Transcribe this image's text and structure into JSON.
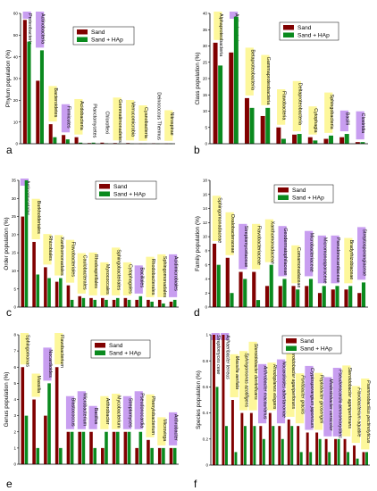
{
  "colors": {
    "sand": "#800000",
    "sand_hap": "#0a8a1e",
    "highlight_yellow": "#fdf79b",
    "highlight_purple": "#c89ef0"
  },
  "chart_data": [
    {
      "panel": "a",
      "type": "bar",
      "ylabel": "Phylum population (%)",
      "ylim": [
        0,
        60
      ],
      "yticks": [
        0,
        10,
        20,
        30,
        40,
        50,
        60
      ],
      "legend": [
        "Sand",
        "Sand + HAp"
      ],
      "legend_position": "top-center",
      "categories": [
        "Proteobacteria",
        "Actinobacteria",
        "Bacteroidetes",
        "Firmicutes",
        "Acidobacteria",
        "Planctomycetes",
        "Chloroflexi",
        "Gemmatimonadetes",
        "Verrucomicrobia",
        "Cyanobacteria",
        "Deinococcus Thermus",
        "Nitrospirae"
      ],
      "highlight": [
        "purple",
        "purple",
        "yellow",
        "purple",
        "yellow",
        "none",
        "none",
        "yellow",
        "yellow",
        "yellow",
        "none",
        "yellow"
      ],
      "series": [
        {
          "name": "Sand",
          "values": [
            57,
            29,
            9,
            4,
            3,
            0.3,
            0.5,
            0.3,
            0.3,
            0.1,
            0.2,
            0.1
          ]
        },
        {
          "name": "Sand + HAp",
          "values": [
            47,
            43,
            3,
            2,
            0.5,
            0.5,
            0.2,
            0.1,
            0.1,
            0.1,
            0.1,
            0.1
          ]
        }
      ]
    },
    {
      "panel": "b",
      "type": "bar",
      "ylabel": "Class population (%)",
      "ylim": [
        0,
        40
      ],
      "yticks": [
        0,
        5,
        10,
        15,
        20,
        25,
        30,
        35,
        40
      ],
      "legend": [
        "Sand",
        "Sand + HAp"
      ],
      "legend_position": "top-right",
      "categories": [
        "Alphaproteobacteria",
        "Actinobacteria",
        "Betaproteobacteria",
        "Gammaproteobacteria",
        "Flavobacteria",
        "Deltaproteobacteria",
        "Cytophagia",
        "Sphingobacteria",
        "Bacilli",
        "Clostridia"
      ],
      "highlight": [
        "yellow",
        "purple",
        "yellow",
        "yellow",
        "yellow",
        "yellow",
        "yellow",
        "yellow",
        "purple",
        "purple"
      ],
      "series": [
        {
          "name": "Sand",
          "values": [
            31,
            28,
            14,
            8.5,
            5,
            2.8,
            2,
            1.5,
            2,
            0.5
          ]
        },
        {
          "name": "Sand + HAp",
          "values": [
            24,
            39,
            11,
            11,
            1.5,
            3,
            1,
            2.5,
            3,
            0.5
          ]
        }
      ]
    },
    {
      "panel": "c",
      "type": "bar",
      "ylabel": "Order population (%)",
      "ylim": [
        0,
        35
      ],
      "yticks": [
        0,
        5,
        10,
        15,
        20,
        25,
        30,
        35
      ],
      "legend": [
        "Sand",
        "Sand + HAp"
      ],
      "legend_position": "top-right",
      "categories": [
        "Actinomycetales",
        "Burkholderiales",
        "Rhizobiales",
        "Xanthomonadales",
        "Flavobacteriales",
        "Caulobacterales",
        "Rhodospirillales",
        "Myxococcales",
        "Sphingobacteriales",
        "Cytophagales",
        "Bacillales",
        "Rhodobacterales",
        "Sphingomonadales",
        "Acidimicrobiales"
      ],
      "highlight": [
        "purple",
        "yellow",
        "yellow",
        "yellow",
        "yellow",
        "yellow",
        "yellow",
        "yellow",
        "yellow",
        "yellow",
        "purple",
        "yellow",
        "yellow",
        "purple"
      ],
      "series": [
        {
          "name": "Sand",
          "values": [
            25,
            18,
            11,
            7,
            6,
            3,
            2.5,
            2.5,
            2,
            2.5,
            2,
            2,
            2,
            1.5
          ]
        },
        {
          "name": "Sand + HAp",
          "values": [
            35,
            9,
            8,
            8,
            2,
            2.5,
            2,
            2,
            2.5,
            2,
            3,
            1.5,
            1,
            2
          ]
        }
      ]
    },
    {
      "panel": "d",
      "type": "bar",
      "ylabel": "Family population (%)",
      "ylim": [
        0,
        18
      ],
      "yticks": [
        0,
        2,
        4,
        6,
        8,
        10,
        12,
        14,
        16,
        18
      ],
      "legend": [
        "Sand",
        "Sand + HAp"
      ],
      "legend_position": "top-right",
      "categories": [
        "Sphingomonadaceae",
        "Oxalobacteraceae",
        "Streptomycetaceae",
        "Flavobacteriaceae",
        "Xanthomonadaceae",
        "Geodermatophilaceae",
        "Comamonadaceae",
        "Microbacteriaceae",
        "Micromonosporaceae",
        "Pseudonocardiaceae",
        "Bradyrhizobiaceae",
        "Streptosporangiaceae"
      ],
      "highlight": [
        "yellow",
        "yellow",
        "purple",
        "yellow",
        "yellow",
        "purple",
        "yellow",
        "purple",
        "purple",
        "purple",
        "yellow",
        "purple"
      ],
      "series": [
        {
          "name": "Sand",
          "values": [
            9,
            7,
            5,
            5,
            3,
            3,
            3,
            3,
            2,
            2.5,
            2.5,
            2
          ]
        },
        {
          "name": "Sand + HAp",
          "values": [
            6,
            2,
            4,
            1,
            6,
            4,
            2.5,
            4,
            3,
            3,
            3,
            3.5
          ]
        }
      ]
    },
    {
      "panel": "e",
      "type": "bar",
      "ylabel": "Genus population (%)",
      "ylim": [
        0,
        8
      ],
      "yticks": [
        0,
        1,
        2,
        3,
        4,
        5,
        6,
        7,
        8
      ],
      "legend": [
        "Sand",
        "Sand + HAp"
      ],
      "legend_position": "top-right",
      "categories": [
        "Sphingomonas",
        "Massilia",
        "Nocardioides",
        "Flavobacterium",
        "Blastococcus",
        "Microbacterium",
        "Bacillus",
        "Arthrobacter",
        "Mycobacterium",
        "Streptomyces",
        "Pseudonocardia",
        "Phenylobacterium",
        "Microvirga",
        "Arthrobacter"
      ],
      "highlight": [
        "yellow",
        "yellow",
        "purple",
        "yellow",
        "purple",
        "purple",
        "purple",
        "yellow",
        "yellow",
        "purple",
        "purple",
        "yellow",
        "yellow",
        "purple"
      ],
      "series": [
        {
          "name": "Sand",
          "values": [
            6,
            4,
            3,
            6,
            2,
            2,
            2,
            1,
            2,
            2,
            1,
            1.5,
            1,
            1
          ]
        },
        {
          "name": "Sand + HAp",
          "values": [
            3,
            1,
            5,
            1,
            2,
            2,
            1,
            2,
            2,
            2,
            2,
            1,
            1,
            1
          ]
        }
      ]
    },
    {
      "panel": "f",
      "type": "bar",
      "ylabel": "Species population (%)",
      "ylim": [
        0,
        1
      ],
      "yticks": [
        0,
        0.2,
        0.4,
        0.6,
        0.8,
        1
      ],
      "legend": [
        "Sand",
        "Sand + HAp"
      ],
      "legend_position": "top-right",
      "categories": [
        "Streptomyces ceae",
        "Adhaeribacter terreus",
        "Massilia aerilata",
        "Sphingomonas azotifigens",
        "Steroidobacter denitrificans",
        "Arthrobacter macaurianus",
        "Rhodoplanes elegans",
        "Nocardioides albertanoniae",
        "Steroidobacter agariperforans",
        "Pontibacter gracilis",
        "Cryptosporangium japonicum",
        "Peptobacter girosengeli",
        "Modestobacter versicolor",
        "Pseudonocardia ammonioxydans",
        "Steroidobacter agariperforans",
        "Flavobacterium aquatile",
        "Psammobacillus pectinolyticus"
      ],
      "highlight": [
        "purple",
        "purple",
        "yellow",
        "yellow",
        "yellow",
        "purple",
        "yellow",
        "purple",
        "yellow",
        "yellow",
        "purple",
        "yellow",
        "purple",
        "purple",
        "yellow",
        "yellow",
        "yellow"
      ],
      "series": [
        {
          "name": "Sand",
          "values": [
            1,
            1,
            0.5,
            0.4,
            0.4,
            0.3,
            0.4,
            0.3,
            0.35,
            0.3,
            0.25,
            0.25,
            0.2,
            0.2,
            0.2,
            0.15,
            0.1
          ]
        },
        {
          "name": "Sand + HAp",
          "values": [
            0.6,
            0.3,
            0.1,
            0.3,
            0.3,
            0.2,
            0.3,
            0.2,
            0.3,
            0.1,
            0.1,
            0.2,
            0.1,
            0.2,
            0.1,
            0.05,
            0.1
          ]
        }
      ]
    }
  ]
}
